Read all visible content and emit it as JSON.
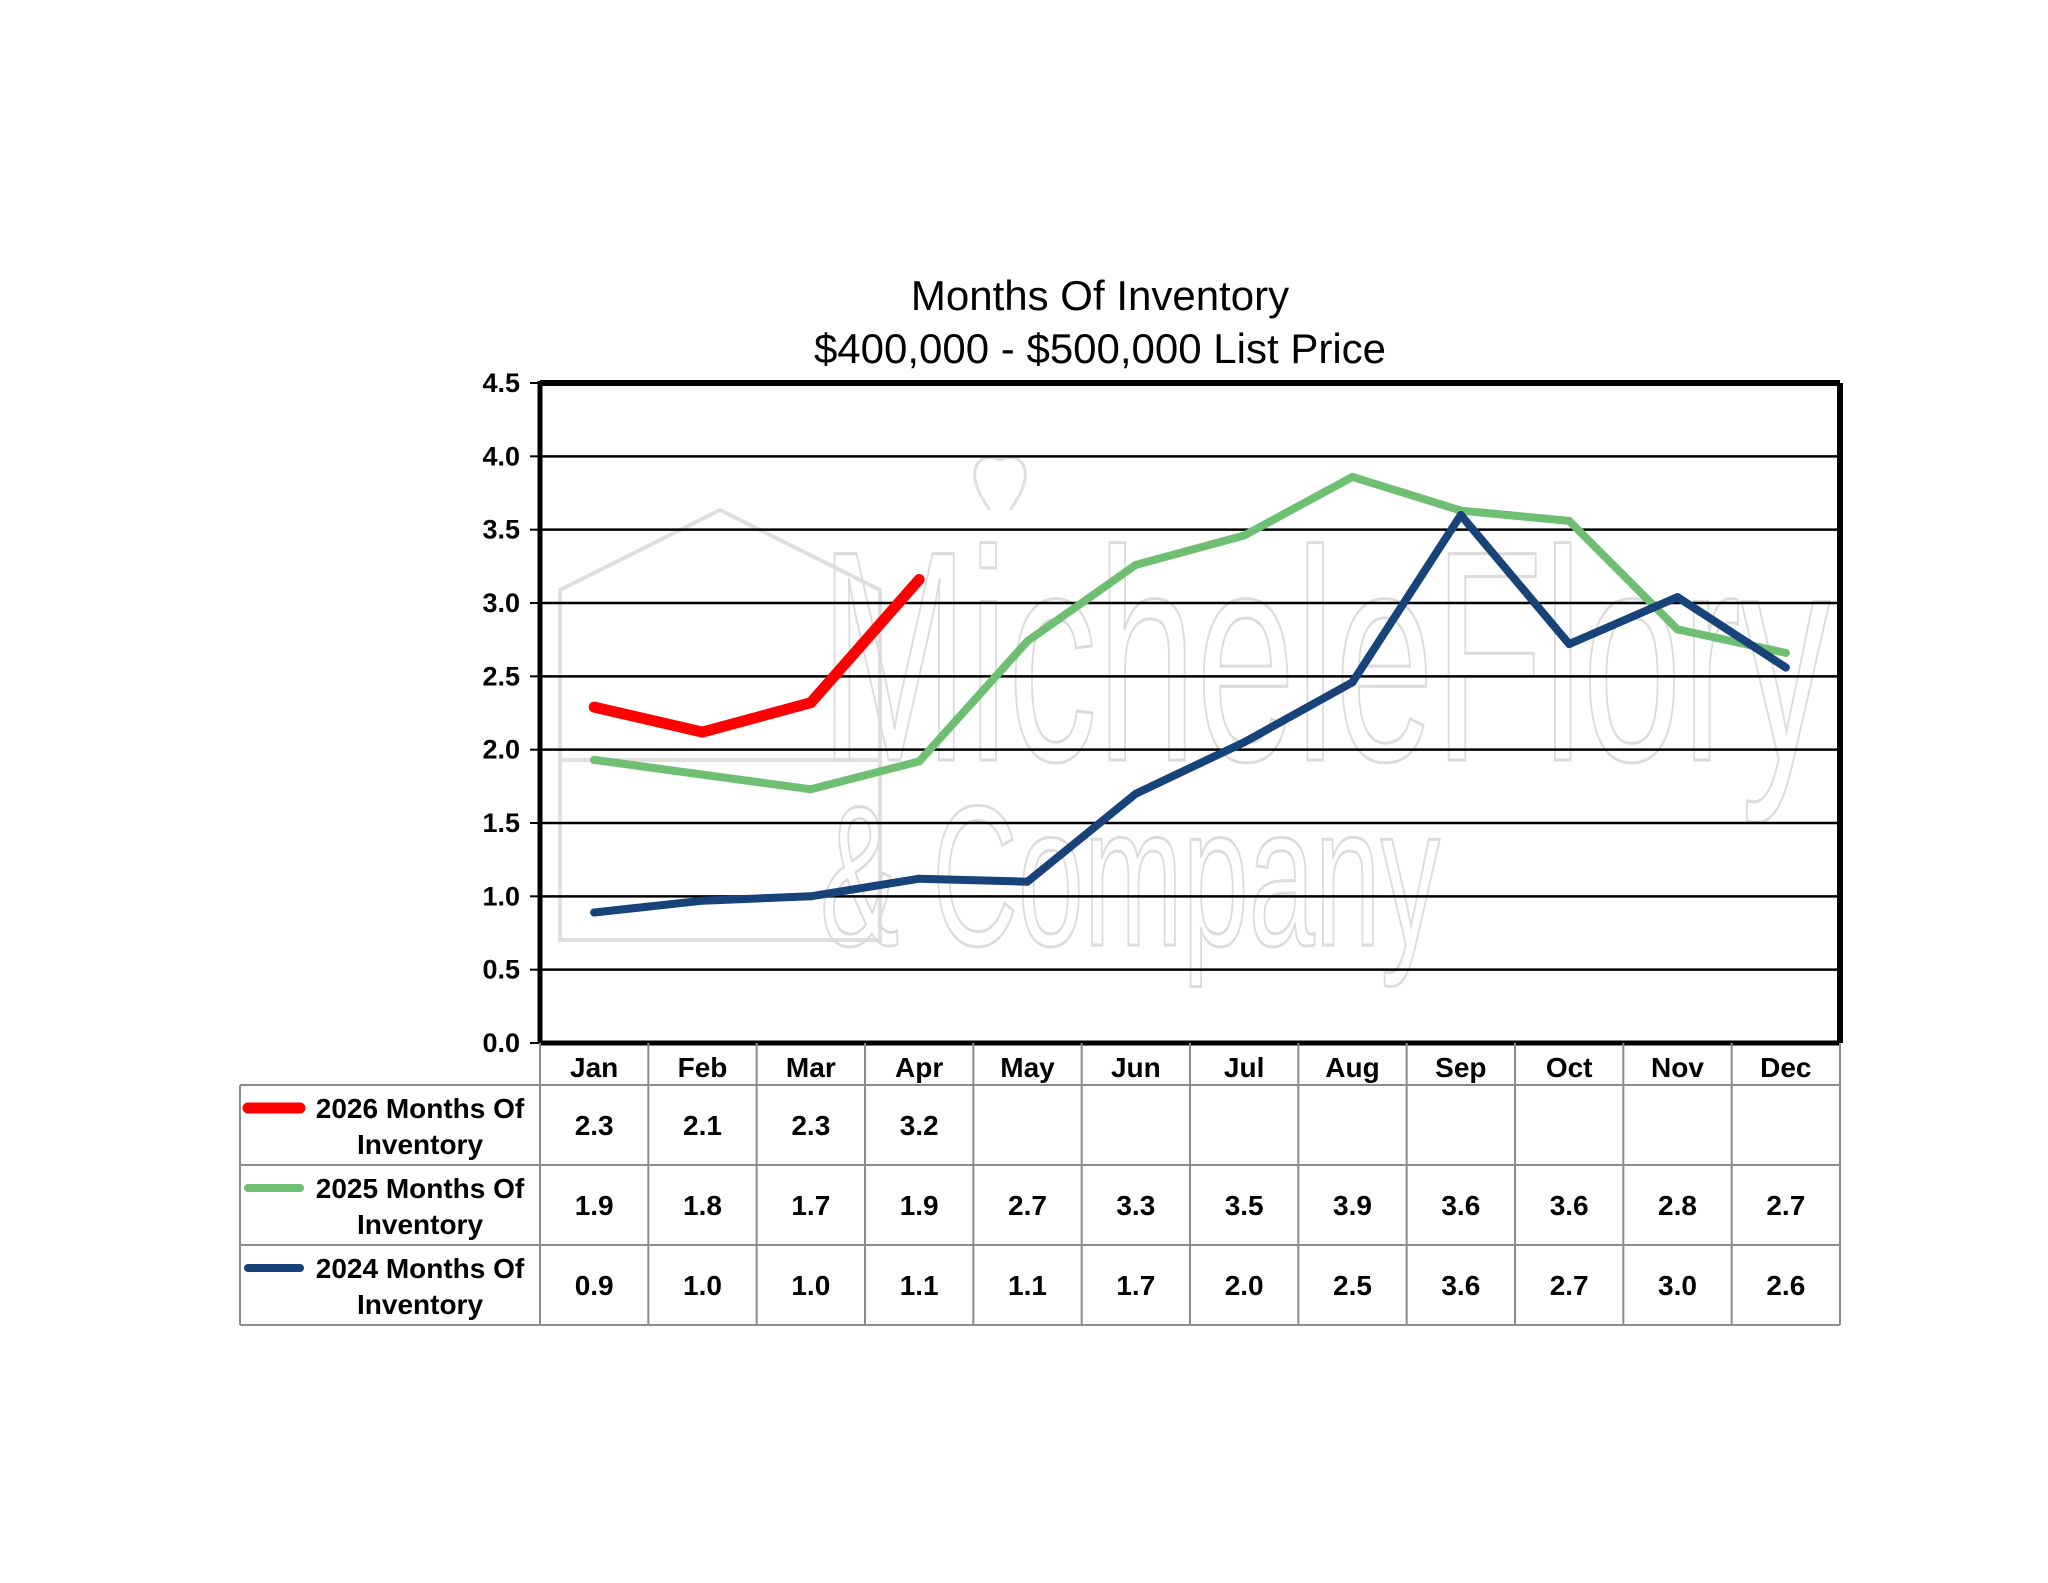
{
  "chart_data": {
    "type": "line",
    "title": "Months Of Inventory",
    "subtitle": "$400,000 - $500,000 List Price",
    "categories": [
      "Jan",
      "Feb",
      "Mar",
      "Apr",
      "May",
      "Jun",
      "Jul",
      "Aug",
      "Sep",
      "Oct",
      "Nov",
      "Dec"
    ],
    "ylim": [
      0,
      4.5
    ],
    "yticks": [
      "0.0",
      "0.5",
      "1.0",
      "1.5",
      "2.0",
      "2.5",
      "3.0",
      "3.5",
      "4.0",
      "4.5"
    ],
    "grid": true,
    "legend_placement": "data-table-left",
    "series": [
      {
        "name": "2026 Months Of Inventory",
        "color": "#ff0000",
        "line_values": [
          2.29,
          2.12,
          2.32,
          3.16
        ],
        "table_labels": [
          "2.3",
          "2.1",
          "2.3",
          "3.2",
          "",
          "",
          "",
          "",
          "",
          "",
          "",
          ""
        ]
      },
      {
        "name": "2025 Months Of Inventory",
        "color": "#6fbf73",
        "line_values": [
          1.93,
          1.83,
          1.73,
          1.92,
          2.74,
          3.26,
          3.46,
          3.86,
          3.63,
          3.56,
          2.82,
          2.66
        ],
        "table_labels": [
          "1.9",
          "1.8",
          "1.7",
          "1.9",
          "2.7",
          "3.3",
          "3.5",
          "3.9",
          "3.6",
          "3.6",
          "2.8",
          "2.7"
        ]
      },
      {
        "name": "2024 Months Of Inventory",
        "color": "#17427a",
        "line_values": [
          0.89,
          0.97,
          1.0,
          1.12,
          1.1,
          1.7,
          2.05,
          2.46,
          3.6,
          2.72,
          3.04,
          2.56
        ],
        "table_labels": [
          "0.9",
          "1.0",
          "1.0",
          "1.1",
          "1.1",
          "1.7",
          "2.0",
          "2.5",
          "3.6",
          "2.7",
          "3.0",
          "2.6"
        ]
      }
    ]
  },
  "watermark": {
    "line1": "MicheleFlory",
    "line2": "& Company",
    "logo_icon": "house-logo-icon"
  }
}
